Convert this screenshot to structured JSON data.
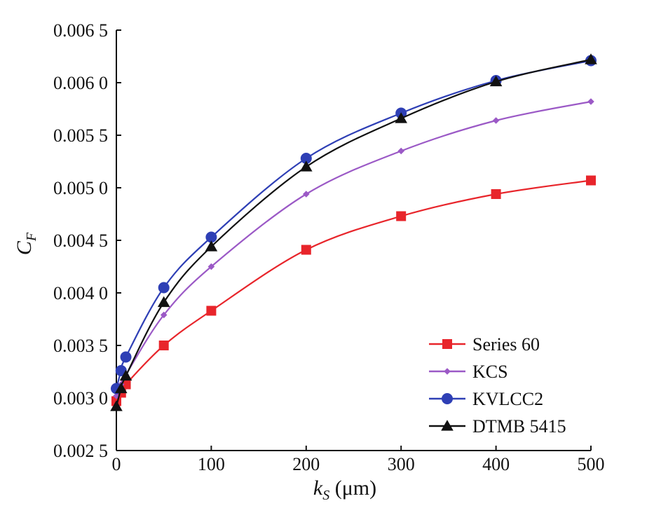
{
  "chart_data": {
    "type": "line",
    "ylabel_main": "C",
    "ylabel_sub": "F",
    "xlabel_main": "k",
    "xlabel_sub": "S",
    "xlabel_unit": " (μm)",
    "xlim": [
      0,
      500
    ],
    "ylim": [
      0.0025,
      0.0065
    ],
    "x_ticks": [
      0,
      100,
      200,
      300,
      400,
      500
    ],
    "x_tick_labels": [
      "0",
      "100",
      "200",
      "300",
      "400",
      "500"
    ],
    "y_ticks": [
      0.0025,
      0.003,
      0.0035,
      0.004,
      0.0045,
      0.005,
      0.0055,
      0.006,
      0.0065
    ],
    "y_tick_labels": [
      "0.002 5",
      "0.003 0",
      "0.003 5",
      "0.004 0",
      "0.004 5",
      "0.005 0",
      "0.005 5",
      "0.006 0",
      "0.006 5"
    ],
    "grid": false,
    "legend_position": "bottom-right",
    "series": [
      {
        "name": "Series 60",
        "color": "#e8252b",
        "marker": "square",
        "x": [
          0,
          5,
          10,
          50,
          100,
          200,
          300,
          400,
          500
        ],
        "y": [
          0.00297,
          0.00305,
          0.00313,
          0.0035,
          0.00383,
          0.00441,
          0.00473,
          0.00494,
          0.00507
        ]
      },
      {
        "name": "KCS",
        "color": "#9b59c6",
        "marker": "diamond",
        "x": [
          0,
          5,
          10,
          50,
          100,
          200,
          300,
          400,
          500
        ],
        "y": [
          0.00302,
          0.00313,
          0.00322,
          0.00379,
          0.00425,
          0.00494,
          0.00535,
          0.00564,
          0.00582
        ]
      },
      {
        "name": "KVLCC2",
        "color": "#2e3fb5",
        "marker": "circle",
        "x": [
          0,
          5,
          10,
          50,
          100,
          200,
          300,
          400,
          500
        ],
        "y": [
          0.00309,
          0.00326,
          0.00339,
          0.00405,
          0.00453,
          0.00528,
          0.00571,
          0.00602,
          0.00621
        ]
      },
      {
        "name": "DTMB 5415",
        "color": "#111111",
        "marker": "triangle",
        "x": [
          0,
          5,
          10,
          50,
          100,
          200,
          300,
          400,
          500
        ],
        "y": [
          0.00292,
          0.00309,
          0.00321,
          0.00391,
          0.00444,
          0.0052,
          0.00566,
          0.00601,
          0.00622
        ]
      }
    ]
  }
}
